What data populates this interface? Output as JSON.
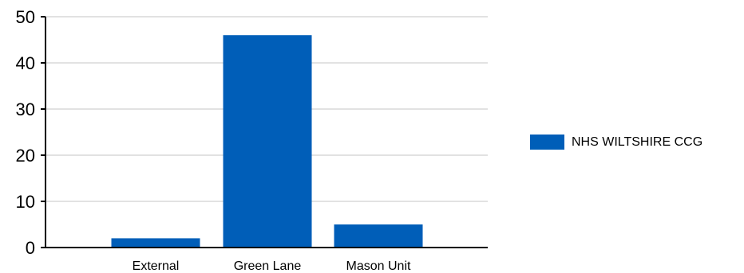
{
  "chart_data": {
    "type": "bar",
    "categories": [
      "External",
      "Green Lane",
      "Mason Unit"
    ],
    "series": [
      {
        "name": "NHS WILTSHIRE CCG",
        "values": [
          2,
          46,
          5
        ],
        "color": "#005EB8"
      }
    ],
    "y_ticks": [
      "0",
      "10",
      "20",
      "30",
      "40",
      "50"
    ],
    "ylim": [
      0,
      50
    ],
    "grid": true,
    "legend_position": "right"
  }
}
